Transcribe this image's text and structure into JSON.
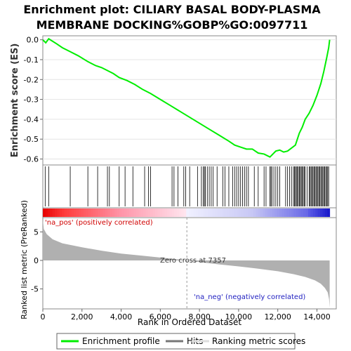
{
  "chart_data": {
    "type": "line",
    "title_lines": [
      "Enrichment plot: CILIARY BASAL BODY-PLASMA",
      "MEMBRANE DOCKING%GOBP%GO:0097711"
    ],
    "xlabel": "Rank in Ordered Dataset",
    "ylabel_top": "Enrichment score (ES)",
    "ylabel_bottom": "Ranked list metric (PreRanked)",
    "x_ticks": [
      "0",
      "2,000",
      "4,000",
      "6,000",
      "8,000",
      "10,000",
      "12,000",
      "14,000"
    ],
    "x_tick_values": [
      0,
      2000,
      4000,
      6000,
      8000,
      10000,
      12000,
      14000
    ],
    "xlim": [
      0,
      14700
    ],
    "es_ticks": [
      "0.0",
      "-0.1",
      "-0.2",
      "-0.3",
      "-0.4",
      "-0.5",
      "-0.6"
    ],
    "es_tick_values": [
      0.0,
      -0.1,
      -0.2,
      -0.3,
      -0.4,
      -0.5,
      -0.6
    ],
    "es_ylim": [
      -0.63,
      0.02
    ],
    "metric_ticks": [
      "5",
      "0",
      "-5"
    ],
    "metric_tick_values": [
      5,
      0,
      -5
    ],
    "metric_ylim": [
      -8.5,
      7.5
    ],
    "es_profile": {
      "x": [
        0,
        150,
        300,
        700,
        1000,
        1400,
        1800,
        2300,
        2700,
        3000,
        3300,
        3600,
        3900,
        4300,
        4700,
        5100,
        5500,
        6000,
        6500,
        7000,
        7500,
        8000,
        8500,
        9000,
        9500,
        9800,
        10100,
        10400,
        10700,
        11000,
        11300,
        11600,
        11750,
        11900,
        12100,
        12300,
        12500,
        12700,
        12900,
        13000,
        13100,
        13250,
        13400,
        13600,
        13800,
        14000,
        14200,
        14350,
        14500,
        14600,
        14650
      ],
      "y": [
        0.0,
        -0.015,
        0.005,
        -0.02,
        -0.04,
        -0.06,
        -0.08,
        -0.11,
        -0.13,
        -0.14,
        -0.155,
        -0.17,
        -0.19,
        -0.205,
        -0.225,
        -0.25,
        -0.27,
        -0.3,
        -0.33,
        -0.36,
        -0.39,
        -0.42,
        -0.45,
        -0.48,
        -0.51,
        -0.53,
        -0.54,
        -0.55,
        -0.55,
        -0.57,
        -0.575,
        -0.59,
        -0.575,
        -0.56,
        -0.555,
        -0.565,
        -0.56,
        -0.545,
        -0.53,
        -0.5,
        -0.47,
        -0.44,
        -0.4,
        -0.37,
        -0.33,
        -0.28,
        -0.22,
        -0.16,
        -0.09,
        -0.04,
        0.0
      ]
    },
    "hits": [
      120,
      300,
      1400,
      2300,
      2800,
      3300,
      3400,
      3900,
      4200,
      4600,
      5200,
      5400,
      5500,
      6600,
      6700,
      6900,
      7200,
      7300,
      7500,
      7900,
      8100,
      8200,
      8250,
      8300,
      8400,
      8500,
      8600,
      8700,
      8900,
      9200,
      9300,
      9500,
      9700,
      9800,
      9900,
      10000,
      10100,
      10200,
      10300,
      10400,
      10500,
      10800,
      11000,
      11300,
      11400,
      11600,
      11650,
      11700,
      11800,
      11900,
      12000,
      12100,
      12400,
      12500,
      12600,
      12700,
      12800,
      12850,
      12900,
      12950,
      13000,
      13050,
      13100,
      13150,
      13200,
      13250,
      13300,
      13350,
      13400,
      13500,
      13600,
      13650,
      13700,
      13750,
      13800,
      13850,
      13900,
      13950,
      14000,
      14050,
      14100,
      14150,
      14200,
      14250,
      14300,
      14350,
      14400,
      14450,
      14500,
      14550,
      14600
    ],
    "metric_curve": {
      "x": [
        0,
        50,
        200,
        500,
        1000,
        2000,
        3000,
        4000,
        5000,
        6000,
        7000,
        7357,
        8000,
        9000,
        10000,
        11000,
        12000,
        12800,
        13400,
        13900,
        14200,
        14400,
        14550,
        14620,
        14650
      ],
      "y": [
        7.2,
        5.5,
        4.6,
        3.7,
        3.0,
        2.3,
        1.7,
        1.2,
        0.85,
        0.5,
        0.15,
        0.0,
        -0.3,
        -0.7,
        -1.05,
        -1.45,
        -1.9,
        -2.4,
        -2.9,
        -3.5,
        -4.1,
        -4.8,
        -5.6,
        -6.8,
        -8.3
      ]
    },
    "zero_cross": 7357,
    "annotations": {
      "na_pos": "'na_pos' (positively correlated)",
      "na_neg": "'na_neg' (negatively correlated)",
      "zero_cross": "Zero cross at 7357"
    },
    "legend": [
      {
        "label": "Enrichment profile",
        "color": "#00ee00"
      },
      {
        "label": "Hits",
        "color": "#000000"
      },
      {
        "label": "Ranking metric scores",
        "color": "#c0c0c0"
      }
    ],
    "colors": {
      "profile": "#00ee00",
      "metric": "#b0b0b0",
      "positive_band": "#ff0000",
      "negative_band": "#0000ee"
    }
  }
}
